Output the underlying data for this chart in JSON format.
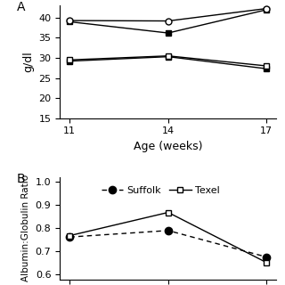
{
  "ages": [
    11,
    14,
    17
  ],
  "panel_A": {
    "ylabel": "g/dl",
    "ylim": [
      15,
      43
    ],
    "yticks": [
      15,
      20,
      25,
      30,
      35,
      40
    ],
    "globulin_suffolk": [
      39.0,
      36.2,
      42.0
    ],
    "globulin_texel": [
      39.3,
      39.2,
      42.3
    ],
    "albumin_suffolk": [
      29.2,
      30.3,
      27.3
    ],
    "albumin_texel": [
      29.5,
      30.5,
      28.0
    ],
    "xlabel": "Age (weeks)"
  },
  "panel_B": {
    "ylabel": "Albumin:Globulin Ratio",
    "ylim": [
      0.58,
      1.02
    ],
    "yticks": [
      0.6,
      0.7,
      0.8,
      0.9,
      1.0
    ],
    "suffolk": [
      0.762,
      0.79,
      0.676
    ],
    "texel": [
      0.768,
      0.868,
      0.652
    ]
  },
  "legend_suffolk": "Suffolk",
  "legend_texel": "Texel",
  "xticks": [
    11,
    14,
    17
  ],
  "marker_size": 5,
  "line_color": "black",
  "background_color": "white",
  "label_A": "A",
  "label_B": "B"
}
